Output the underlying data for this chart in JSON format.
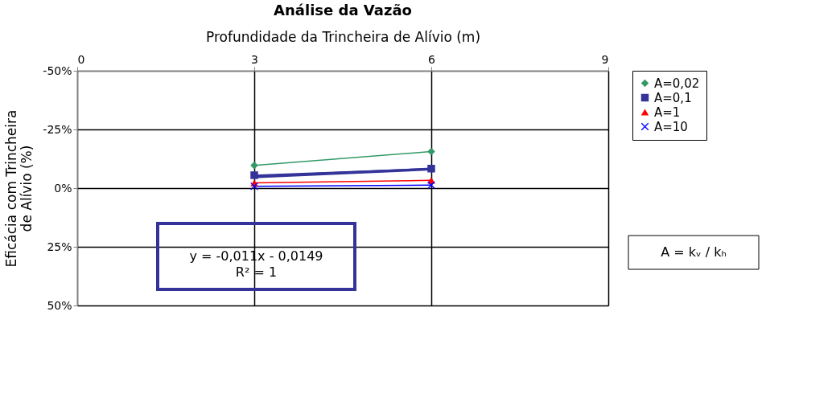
{
  "chart_data": {
    "type": "line",
    "title": "Análise da Vazão",
    "xlabel": "Profundidade da Trincheira de Alívio (m)",
    "ylabel": "Eficácia com Trincheira de Alívio (%)",
    "x": [
      3,
      6
    ],
    "xlim": [
      0,
      9
    ],
    "xticks": [
      0,
      3,
      6,
      9
    ],
    "ylim": [
      50,
      -50
    ],
    "yticks": [
      {
        "value": -50,
        "label": "-50%"
      },
      {
        "value": -25,
        "label": "-25%"
      },
      {
        "value": 0,
        "label": "0%"
      },
      {
        "value": 25,
        "label": "25%"
      },
      {
        "value": 50,
        "label": "50%"
      }
    ],
    "grid": true,
    "legend": "right",
    "series": [
      {
        "name": "A=0,02",
        "color": "#339966",
        "marker": "diamond",
        "values": [
          -9.7,
          -15.6
        ]
      },
      {
        "name": "A=0,1",
        "color": "#333399",
        "marker": "square",
        "values": [
          -5.5,
          -8.3
        ]
      },
      {
        "name": "A=1",
        "color": "#ff0000",
        "marker": "triangle",
        "values": [
          -2.2,
          -3.3
        ]
      },
      {
        "name": "A=10",
        "color": "#0000ff",
        "marker": "cross",
        "values": [
          -0.8,
          -1.3
        ]
      },
      {
        "type": "line",
        "color": "#333399",
        "marker": "none",
        "x": [
          3,
          6
        ],
        "values": [
          -4.8,
          -8.1
        ]
      }
    ],
    "annotations": [
      "y = -0,011x - 0,0149\nR² = 1",
      "A = kᵥ / kₕ"
    ]
  }
}
